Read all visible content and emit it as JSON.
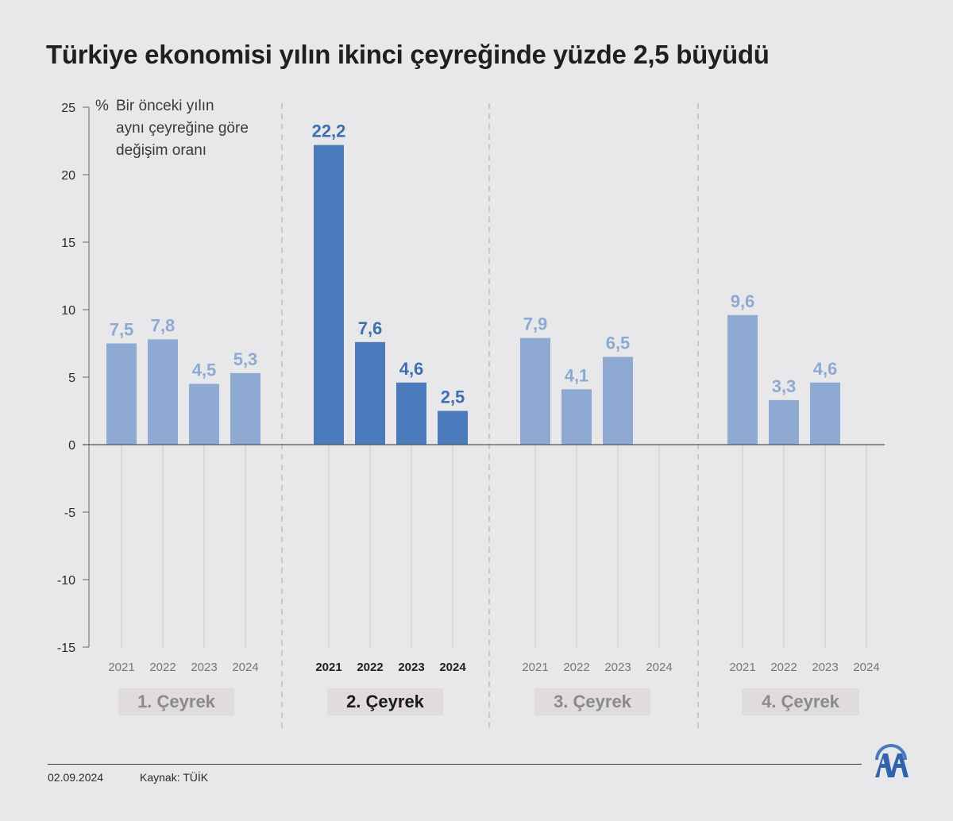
{
  "title": "Türkiye ekonomisi yılın ikinci çeyreğinde yüzde 2,5 büyüdü",
  "note": {
    "pct": "%",
    "lines": [
      "Bir önceki yılın",
      "aynı çeyreğine göre",
      "değişim oranı"
    ]
  },
  "footer": {
    "date": "02.09.2024",
    "source": "Kaynak: TÜİK"
  },
  "colors": {
    "light_bar": "#8eaad3",
    "dark_bar": "#4b7bbd",
    "light_label": "#8eaad3",
    "dark_label": "#3f6fb0",
    "quarter_box": "#e0dcdc"
  },
  "chart_data": {
    "type": "bar",
    "ylim": [
      -15,
      25
    ],
    "yticks": [
      25,
      20,
      15,
      10,
      5,
      0,
      -5,
      -10,
      -15
    ],
    "years": [
      "2021",
      "2022",
      "2023",
      "2024"
    ],
    "highlight_group": 1,
    "groups": [
      {
        "label": "1. Çeyrek",
        "values": [
          7.5,
          7.8,
          4.5,
          5.3
        ],
        "labels": [
          "7,5",
          "7,8",
          "4,5",
          "5,3"
        ]
      },
      {
        "label": "2. Çeyrek",
        "values": [
          22.2,
          7.6,
          4.6,
          2.5
        ],
        "labels": [
          "22,2",
          "7,6",
          "4,6",
          "2,5"
        ]
      },
      {
        "label": "3. Çeyrek",
        "values": [
          7.9,
          4.1,
          6.5,
          null
        ],
        "labels": [
          "7,9",
          "4,1",
          "6,5",
          ""
        ]
      },
      {
        "label": "4. Çeyrek",
        "values": [
          9.6,
          3.3,
          4.6,
          null
        ],
        "labels": [
          "9,6",
          "3,3",
          "4,6",
          ""
        ]
      }
    ]
  }
}
